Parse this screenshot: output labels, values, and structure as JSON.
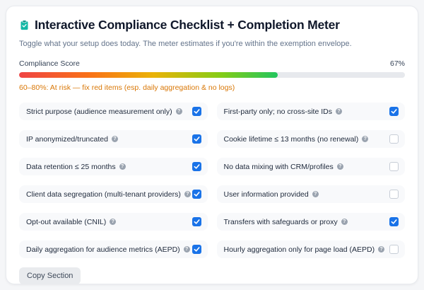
{
  "header": {
    "title": "Interactive Compliance Checklist + Completion Meter",
    "subtitle": "Toggle what your setup does today. The meter estimates if you're within the exemption envelope.",
    "icon": "clipboard-icon",
    "icon_color": "#14b8a6"
  },
  "meter": {
    "label": "Compliance Score",
    "value_percent": 67,
    "value_label": "67%",
    "status_text": "60–80%: At risk — fix red items (esp. daily aggregation & no logs)",
    "status_color": "#d97706",
    "track_color": "#e7e9ed",
    "gradient_colors": [
      "#ef4444",
      "#f97316",
      "#eab308",
      "#84cc16",
      "#22c55e"
    ]
  },
  "checklist": {
    "items": [
      {
        "label": "Strict purpose (audience measurement only)",
        "checked": true
      },
      {
        "label": "First-party only; no cross-site IDs",
        "checked": true
      },
      {
        "label": "IP anonymized/truncated",
        "checked": true
      },
      {
        "label": "Cookie lifetime ≤ 13 months (no renewal)",
        "checked": false
      },
      {
        "label": "Data retention ≤ 25 months",
        "checked": true
      },
      {
        "label": "No data mixing with CRM/profiles",
        "checked": false
      },
      {
        "label": "Client data segregation (multi-tenant providers)",
        "checked": true
      },
      {
        "label": "User information provided",
        "checked": false
      },
      {
        "label": "Opt-out available (CNIL)",
        "checked": true
      },
      {
        "label": "Transfers with safeguards or proxy",
        "checked": true
      },
      {
        "label": "Daily aggregation for audience metrics (AEPD)",
        "checked": true
      },
      {
        "label": "Hourly aggregation only for page load (AEPD)",
        "checked": false
      }
    ]
  },
  "footer": {
    "copy_button_label": "Copy Section"
  },
  "colors": {
    "checkbox_checked": "#1a73e8",
    "card_bg": "#ffffff",
    "page_bg": "#f5f6f8",
    "item_bg": "#f8f9fb",
    "title_color": "#0f172a"
  }
}
